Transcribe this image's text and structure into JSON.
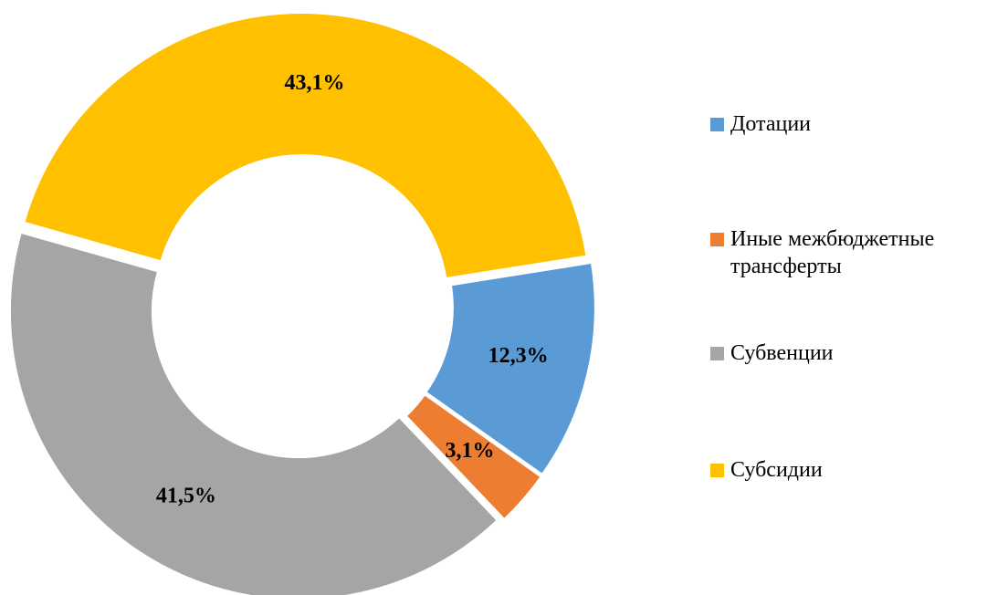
{
  "chart_data": {
    "type": "donut",
    "categories": [
      "Дотации",
      "Иные межбюджетные трансферты",
      "Субвенции",
      "Субсидии"
    ],
    "values": [
      12.3,
      3.1,
      41.5,
      43.1
    ],
    "value_labels": [
      "12,3%",
      "3,1%",
      "41,5%",
      "43,1%"
    ],
    "colors": [
      "#5b9bd5",
      "#ed7d31",
      "#a5a5a5",
      "#ffc000"
    ],
    "legend": "right"
  }
}
